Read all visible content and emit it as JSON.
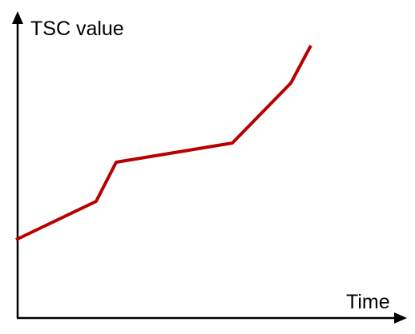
{
  "axes": {
    "y_label": "TSC value",
    "x_label": "Time"
  }
}
